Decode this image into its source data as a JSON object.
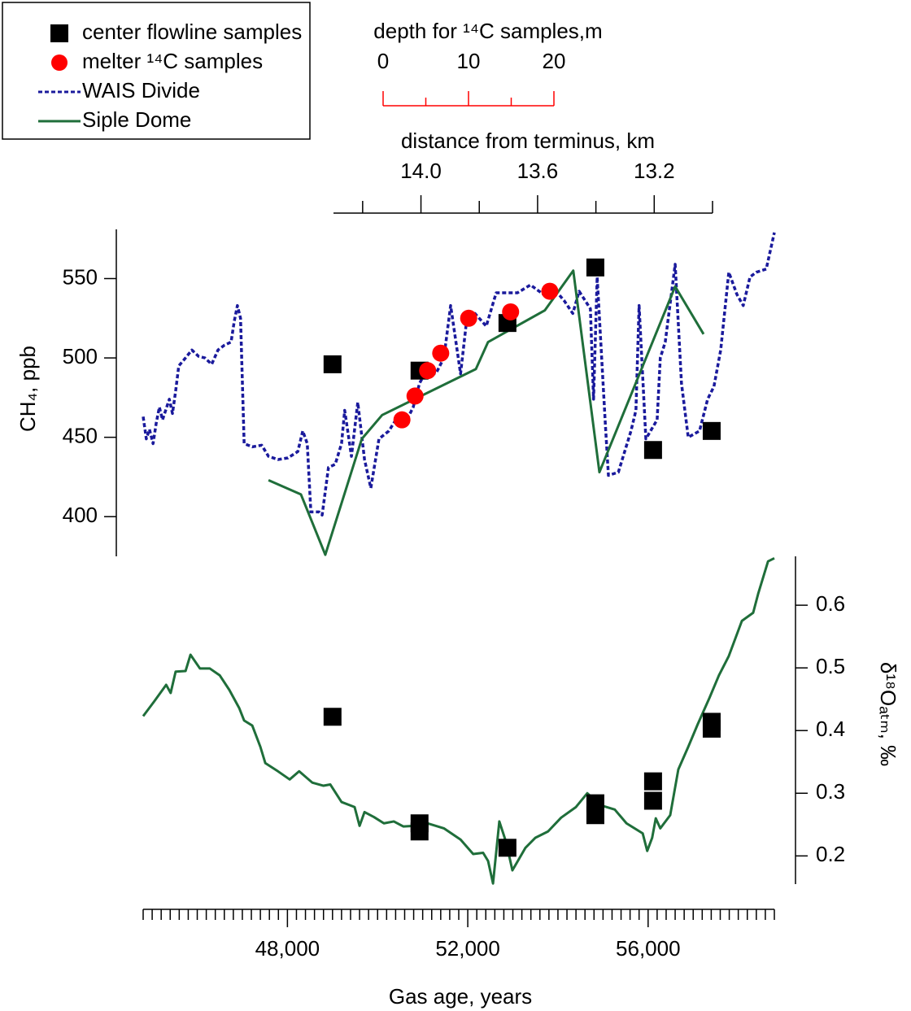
{
  "chart_data": {
    "type": "line",
    "xlabel": "Gas age, years",
    "xlim": [
      44800,
      58800
    ],
    "xticks": [
      {
        "value": 48000,
        "label": "48,000"
      },
      {
        "value": 52000,
        "label": "52,000"
      },
      {
        "value": 56000,
        "label": "56,000"
      }
    ],
    "xminorticks": [
      44800,
      45000,
      45200,
      45400,
      45600,
      45800,
      46000,
      46200,
      46400,
      46600,
      46800,
      47000,
      47200,
      47400,
      47600,
      47800,
      48200,
      48400,
      48600,
      48800,
      49000,
      49200,
      49400,
      49600,
      49800,
      50000,
      50200,
      50400,
      50600,
      50800,
      51000,
      51200,
      51400,
      51600,
      51800,
      52200,
      52400,
      52600,
      52800,
      53000,
      53200,
      53400,
      53600,
      53800,
      54000,
      54200,
      54400,
      54600,
      54800,
      55000,
      55200,
      55400,
      55600,
      55800,
      56200,
      56400,
      56600,
      56800,
      57000,
      57200,
      57400,
      57600,
      57800,
      58000,
      58200,
      58400,
      58600,
      58800
    ],
    "ylabel": "CH₄, ppb",
    "ylim": [
      375,
      581
    ],
    "yticks": [
      400,
      450,
      500,
      550
    ],
    "y2label": "δ¹⁸Oₐₜₘ, ‰",
    "y2lim": [
      0.155,
      0.678
    ],
    "y2ticks": [
      0.2,
      0.3,
      0.4,
      0.5,
      0.6
    ],
    "x2label": "distance from terminus, km",
    "x2lim": [
      14.3,
      13.0
    ],
    "x2ticks": [
      {
        "value": 14,
        "label": "14.0"
      },
      13.6,
      13.2
    ],
    "x2minorticks": [
      14.2,
      13.8,
      13.4,
      13.0
    ],
    "x3label": "depth for ¹⁴C samples,m",
    "x3lim": [
      0,
      20
    ],
    "x3ticks": [
      0,
      10,
      20
    ],
    "x3minorticks": [
      5,
      15
    ],
    "x3color": "#ff0000",
    "legend": "upper left",
    "grid": false,
    "series": [
      {
        "name": "center flowline samples",
        "type": "scatter",
        "marker": "square",
        "color": "#000000",
        "x": [
          49000,
          50930,
          52880,
          54830,
          56110,
          57410
        ],
        "values": [
          496,
          492,
          522,
          557,
          442,
          454
        ]
      },
      {
        "name": "melter ¹⁴C samples",
        "type": "scatter",
        "marker": "circle",
        "color": "#ff0000",
        "x": [
          50540,
          50830,
          51110,
          51400,
          52020,
          52950,
          53820
        ],
        "values": [
          461,
          476,
          492,
          503,
          525,
          529,
          542
        ]
      },
      {
        "name": "WAIS Divide",
        "type": "line",
        "style": "dotted",
        "color": "#1a1a9c",
        "x": [
          44800,
          44870,
          44940,
          45020,
          45090,
          45160,
          45230,
          45380,
          45450,
          45520,
          45590,
          45740,
          45880,
          46030,
          46170,
          46320,
          46460,
          46600,
          46750,
          46820,
          46890,
          46960,
          47040,
          47220,
          47430,
          47580,
          47790,
          48010,
          48230,
          48340,
          48440,
          48520,
          48700,
          48770,
          48910,
          49060,
          49200,
          49270,
          49420,
          49560,
          49710,
          49850,
          50030,
          50250,
          50470,
          50650,
          50790,
          50930,
          51080,
          51290,
          51470,
          51620,
          51840,
          51980,
          52160,
          52410,
          52630,
          52850,
          53100,
          53390,
          53680,
          53960,
          54140,
          54330,
          54470,
          54720,
          54790,
          54870,
          55050,
          55120,
          55340,
          55620,
          55730,
          55800,
          55950,
          56200,
          56270,
          56380,
          56600,
          56740,
          56890,
          57140,
          57320,
          57460,
          57610,
          57790,
          57970,
          58110,
          58260,
          58400,
          58620,
          58800
        ],
        "values": [
          463,
          449,
          455,
          446,
          459,
          469,
          461,
          474,
          465,
          479,
          495,
          500,
          505,
          501,
          500,
          496,
          505,
          508,
          510,
          523,
          533,
          525,
          446,
          444,
          445,
          438,
          436,
          437,
          441,
          454,
          446,
          403,
          403,
          401,
          431,
          433,
          446,
          467,
          438,
          472,
          436,
          418,
          449,
          454,
          464,
          461,
          469,
          484,
          492,
          490,
          500,
          533,
          490,
          525,
          528,
          520,
          541,
          541,
          541,
          546,
          540,
          542,
          536,
          528,
          542,
          531,
          474,
          551,
          459,
          426,
          428,
          454,
          467,
          533,
          449,
          461,
          500,
          510,
          559,
          484,
          450,
          454,
          474,
          482,
          505,
          554,
          540,
          533,
          551,
          554,
          556,
          579
        ]
      },
      {
        "name": "Siple Dome",
        "type": "line",
        "style": "solid",
        "color": "#1f6e3a",
        "x": [
          47580,
          48300,
          48840,
          49650,
          50100,
          52180,
          52450,
          53710,
          54340,
          54920,
          56600,
          57230
        ],
        "values": [
          423,
          414,
          376,
          449,
          464,
          493,
          510,
          530,
          555,
          428,
          545,
          515
        ]
      },
      {
        "type": "line",
        "style": "solid",
        "color": "#1f6e3a",
        "axis": "y2",
        "x": [
          44800,
          45050,
          45310,
          45410,
          45520,
          45740,
          45850,
          46060,
          46280,
          46500,
          46710,
          46930,
          47040,
          47220,
          47400,
          47510,
          47790,
          48050,
          48260,
          48550,
          48800,
          48950,
          49200,
          49490,
          49600,
          49710,
          49920,
          50140,
          50360,
          50570,
          50830,
          51110,
          51470,
          51840,
          52120,
          52340,
          52450,
          52560,
          52700,
          52850,
          52990,
          53280,
          53500,
          53780,
          54070,
          54400,
          54650,
          54940,
          55260,
          55520,
          55880,
          55980,
          56090,
          56170,
          56270,
          56490,
          56670,
          56890,
          57100,
          57360,
          57570,
          57790,
          58080,
          58330,
          58440,
          58660,
          58800
        ],
        "values": [
          0.423,
          0.447,
          0.473,
          0.46,
          0.494,
          0.495,
          0.521,
          0.499,
          0.499,
          0.488,
          0.465,
          0.436,
          0.416,
          0.408,
          0.374,
          0.348,
          0.335,
          0.322,
          0.335,
          0.317,
          0.312,
          0.314,
          0.286,
          0.278,
          0.248,
          0.27,
          0.262,
          0.252,
          0.255,
          0.247,
          0.248,
          0.252,
          0.244,
          0.226,
          0.203,
          0.205,
          0.192,
          0.156,
          0.255,
          0.222,
          0.177,
          0.213,
          0.229,
          0.239,
          0.261,
          0.278,
          0.3,
          0.281,
          0.274,
          0.252,
          0.236,
          0.208,
          0.229,
          0.26,
          0.244,
          0.265,
          0.338,
          0.374,
          0.41,
          0.452,
          0.488,
          0.519,
          0.575,
          0.588,
          0.618,
          0.67,
          0.675
        ]
      },
      {
        "type": "scatter",
        "marker": "square",
        "color": "#000000",
        "axis": "y2",
        "x": [
          49000,
          50930,
          50930,
          52880,
          54830,
          54830,
          56110,
          56110,
          57410,
          57410
        ],
        "values": [
          0.422,
          0.252,
          0.239,
          0.213,
          0.284,
          0.265,
          0.319,
          0.288,
          0.414,
          0.403
        ]
      }
    ]
  }
}
